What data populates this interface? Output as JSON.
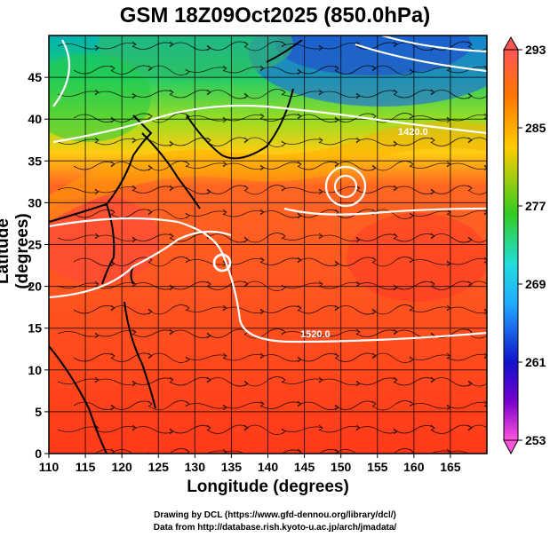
{
  "title": "GSM 18Z09Oct2025 (850.0hPa)",
  "xaxis": {
    "label": "Longitude (degrees)",
    "range": [
      110,
      170
    ],
    "ticks": [
      "110",
      "115",
      "120",
      "125",
      "130",
      "135",
      "140",
      "145",
      "150",
      "155",
      "160",
      "165"
    ]
  },
  "yaxis": {
    "label": "Latitude (degrees)",
    "range": [
      0,
      50
    ],
    "ticks": [
      "0",
      "5",
      "10",
      "15",
      "20",
      "25",
      "30",
      "35",
      "40",
      "45"
    ]
  },
  "colorbar": {
    "range": [
      253,
      293
    ],
    "ticks": [
      "253",
      "261",
      "269",
      "277",
      "285",
      "293"
    ]
  },
  "contour_labels": [
    "1420.0",
    "1520.0"
  ],
  "credits": {
    "line1": "Drawing by DCL (https://www.gfd-dennou.org/library/dcl/)",
    "line2": "Data from http://database.rish.kyoto-u.ac.jp/arch/jmadata/"
  },
  "colors": {
    "cold": "#1a1acc",
    "mid": "#33cc33",
    "warm": "#ff3322"
  }
}
